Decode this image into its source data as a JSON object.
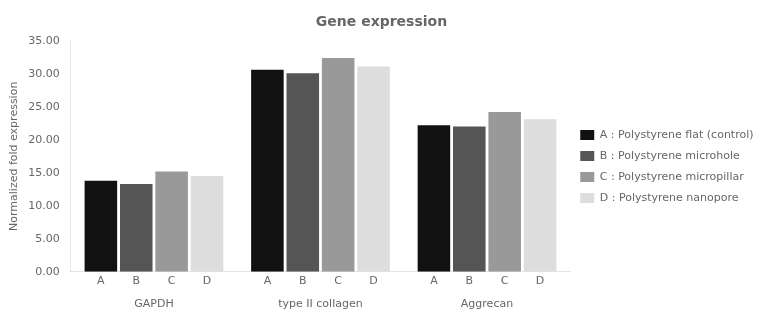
{
  "chart_data": {
    "type": "bar",
    "title": "Gene expression",
    "ylabel": "Normalized fold expression",
    "categories": [
      "GAPDH",
      "type II collagen",
      "Aggrecan"
    ],
    "series": [
      {
        "name": "A : Polystyrene flat (control)",
        "label": "A",
        "color": "#111111",
        "values": [
          13.8,
          30.6,
          22.2
        ]
      },
      {
        "name": "B : Polystyrene microhole",
        "label": "B",
        "color": "#555555",
        "values": [
          13.3,
          30.1,
          22.0
        ]
      },
      {
        "name": "C : Polystyrene micropillar",
        "label": "C",
        "color": "#999999",
        "values": [
          15.2,
          32.4,
          24.2
        ]
      },
      {
        "name": "D : Polystyrene nanopore",
        "label": "D",
        "color": "#dddddd",
        "values": [
          14.5,
          31.1,
          23.1
        ]
      }
    ],
    "ylim": [
      0,
      35
    ],
    "yticks": [
      {
        "value": 0,
        "label": "0.00"
      },
      {
        "value": 5,
        "label": "5.00"
      },
      {
        "value": 10,
        "label": "10.00"
      },
      {
        "value": 15,
        "label": "15.00"
      },
      {
        "value": 20,
        "label": "20.00"
      },
      {
        "value": 25,
        "label": "25.00"
      },
      {
        "value": 30,
        "label": "30.00"
      },
      {
        "value": 35,
        "label": "35.00"
      }
    ],
    "grid": false,
    "legend": "right"
  }
}
